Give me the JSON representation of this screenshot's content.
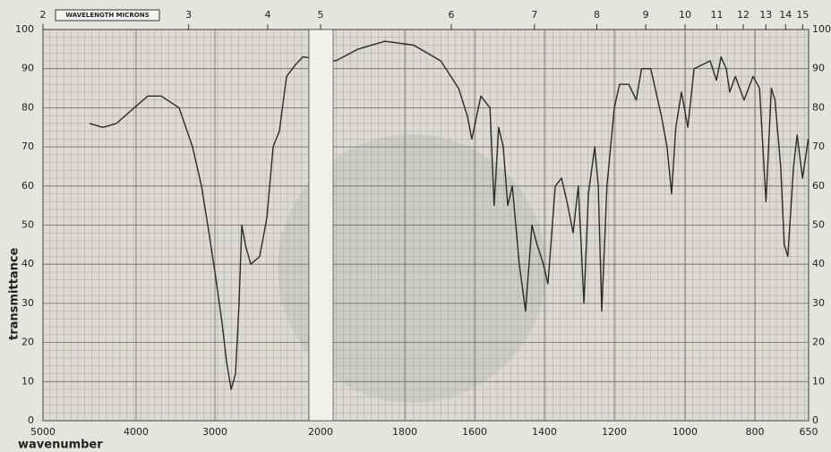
{
  "chart_data": {
    "type": "line",
    "ylabel": "transmittance",
    "xlabel": "wavenumber",
    "x2label": "WAVELENGTH MICRONS",
    "x": [
      4500,
      4356,
      4212,
      4019,
      3852,
      3682,
      3455,
      3284,
      3170,
      3091,
      3000,
      2932,
      2890,
      2847,
      2805,
      2771,
      2746,
      2712,
      2661,
      2576,
      2508,
      2449,
      2390,
      2322,
      2237,
      2169,
      1964,
      1911,
      1847,
      1774,
      1697,
      1646,
      1621,
      1608,
      1582,
      1556,
      1544,
      1531,
      1518,
      1505,
      1492,
      1472,
      1454,
      1436,
      1421,
      1403,
      1390,
      1369,
      1351,
      1333,
      1318,
      1303,
      1287,
      1274,
      1256,
      1246,
      1236,
      1221,
      1200,
      1185,
      1159,
      1138,
      1123,
      1097,
      1067,
      1051,
      1038,
      1026,
      1010,
      992,
      974,
      928,
      910,
      897,
      882,
      872,
      856,
      831,
      805,
      787,
      769,
      754,
      744,
      728,
      718,
      708,
      692,
      682,
      667,
      651
    ],
    "series": [
      {
        "color": "#2a2a2a",
        "values": [
          76,
          75,
          76,
          80,
          83,
          83,
          80,
          70,
          60,
          50,
          38,
          25,
          15,
          8,
          12,
          30,
          50,
          45,
          40,
          42,
          52,
          70,
          74,
          88,
          91,
          93,
          92,
          95,
          97,
          96,
          92,
          85,
          78,
          72,
          83,
          80,
          55,
          75,
          70,
          55,
          60,
          40,
          28,
          50,
          45,
          40,
          35,
          60,
          62,
          55,
          48,
          60,
          30,
          58,
          70,
          60,
          28,
          60,
          80,
          86,
          86,
          82,
          90,
          90,
          78,
          70,
          58,
          75,
          84,
          75,
          90,
          92,
          87,
          93,
          90,
          84,
          88,
          82,
          88,
          85,
          56,
          85,
          82,
          65,
          45,
          42,
          65,
          73,
          62,
          72
        ]
      }
    ],
    "xlim": [
      5000,
      650
    ],
    "xticks": [
      5000,
      4000,
      3000,
      2000,
      1800,
      1600,
      1400,
      1200,
      1000,
      800,
      650
    ],
    "x2ticks": [
      2,
      3,
      4,
      5,
      6,
      7,
      8,
      9,
      10,
      11,
      12,
      13,
      14,
      15
    ],
    "ylim": [
      0,
      100
    ],
    "yticks": [
      0,
      10,
      20,
      30,
      40,
      50,
      60,
      70,
      80,
      90,
      100
    ],
    "grid": true
  }
}
